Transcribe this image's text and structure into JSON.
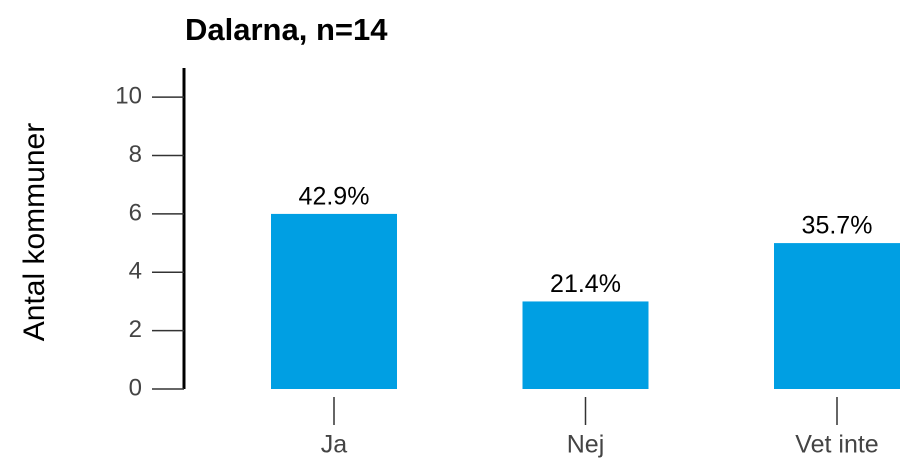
{
  "chart_data": {
    "type": "bar",
    "title": "Dalarna, n=14",
    "ylabel": "Antal kommuner",
    "categories": [
      "Ja",
      "Nej",
      "Vet inte"
    ],
    "values": [
      6,
      3,
      5
    ],
    "value_labels": [
      "42.9%",
      "21.4%",
      "35.7%"
    ],
    "color": "#009fe3",
    "ylim": [
      0,
      11
    ],
    "yticks": [
      0,
      2,
      4,
      6,
      8,
      10
    ]
  }
}
